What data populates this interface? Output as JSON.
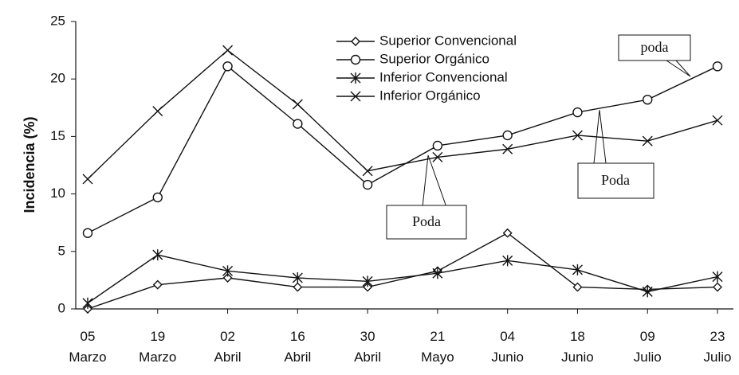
{
  "chart_data": {
    "type": "line",
    "y_label": "Incidencia (%)",
    "categories": [
      "05 Marzo",
      "19 Marzo",
      "02 Abril",
      "16 Abril",
      "30 Abril",
      "21 Mayo",
      "04 Junio",
      "18 Junio",
      "09 Julio",
      "23 Julio"
    ],
    "series": [
      {
        "name": "Superior Convencional",
        "color": "#111111",
        "marker": "diamond",
        "values": [
          0,
          2.1,
          2.7,
          1.9,
          1.9,
          3.3,
          6.6,
          1.9,
          1.7,
          1.9
        ]
      },
      {
        "name": "Superior Orgánico",
        "color": "#111111",
        "marker": "circle",
        "values": [
          6.6,
          9.7,
          21.1,
          16.1,
          10.8,
          14.2,
          15.1,
          17.1,
          18.2,
          21.1
        ]
      },
      {
        "name": "Inferior Convencional",
        "color": "#111111",
        "marker": "xbar",
        "values": [
          0.5,
          4.7,
          3.3,
          2.7,
          2.4,
          3.1,
          4.2,
          3.4,
          1.5,
          2.8
        ]
      },
      {
        "name": "Inferior Orgánico",
        "color": "#111111",
        "marker": "x",
        "values": [
          11.3,
          17.2,
          22.5,
          17.8,
          12.0,
          13.2,
          13.9,
          15.1,
          14.6,
          16.4
        ]
      }
    ],
    "ylim": [
      0,
      25
    ],
    "yticks": [
      0,
      5,
      10,
      15,
      20,
      25
    ],
    "annotations": [
      "poda",
      "Poda",
      "Poda"
    ]
  }
}
